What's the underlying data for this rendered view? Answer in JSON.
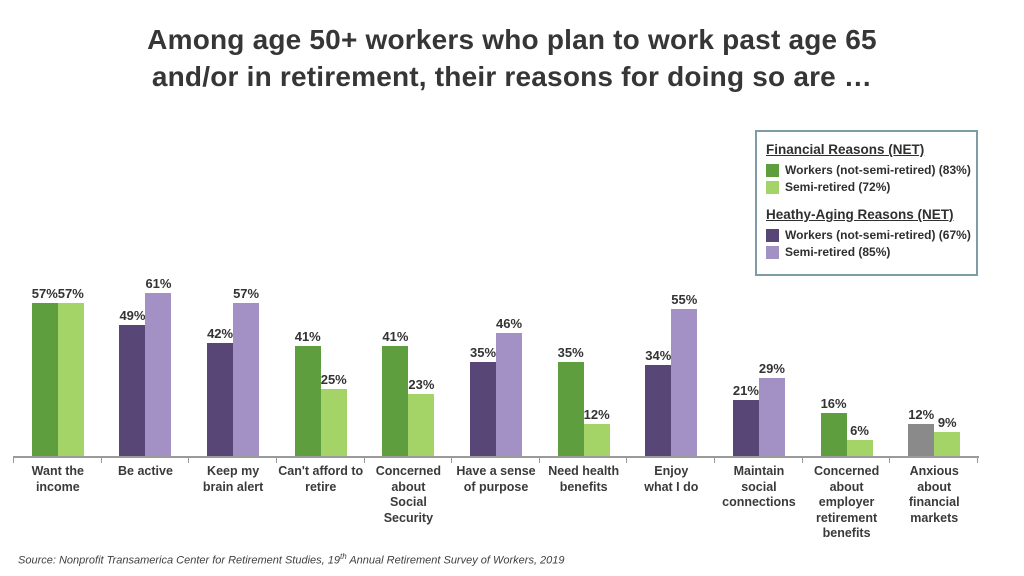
{
  "header": {
    "line1": "Among age 50+ workers who plan to work past age 65",
    "line2": "and/or in retirement, their reasons for doing so are …"
  },
  "legend": {
    "sections": [
      {
        "title": "Financial Reasons (NET)",
        "items": [
          {
            "label": "Workers (not-semi-retired) (83%)",
            "color": "dark_green"
          },
          {
            "label": "Semi-retired (72%)",
            "color": "light_green"
          }
        ]
      },
      {
        "title": "Heathy-Aging Reasons (NET)",
        "items": [
          {
            "label": "Workers (not-semi-retired) (67%)",
            "color": "dark_purple"
          },
          {
            "label": "Semi-retired (85%)",
            "color": "light_purple"
          }
        ]
      }
    ]
  },
  "chart_data": {
    "type": "bar",
    "title": "Among age 50+ workers who plan to work past age 65 and/or in retirement, their reasons for doing so are …",
    "ylim": [
      0,
      70
    ],
    "grid": false,
    "value_label_format": "{v}%",
    "legend_position": "top-right",
    "palette": {
      "dark_green": "#5f9e3f",
      "light_green": "#a4d368",
      "dark_purple": "#584676",
      "light_purple": "#a391c5",
      "gray": "#8a8a8a"
    },
    "series": [
      {
        "name": "Workers (not-semi-retired)",
        "values": [
          57,
          49,
          42,
          41,
          41,
          35,
          35,
          34,
          21,
          16,
          12
        ]
      },
      {
        "name": "Semi-retired",
        "values": [
          57,
          61,
          57,
          25,
          23,
          46,
          12,
          55,
          29,
          6,
          9
        ]
      }
    ],
    "categories": [
      {
        "label": "Want the\nincome",
        "palette_pair": [
          "dark_green",
          "light_green"
        ]
      },
      {
        "label": "Be active",
        "palette_pair": [
          "dark_purple",
          "light_purple"
        ]
      },
      {
        "label": "Keep my\nbrain alert",
        "palette_pair": [
          "dark_purple",
          "light_purple"
        ]
      },
      {
        "label": "Can't afford to\nretire",
        "palette_pair": [
          "dark_green",
          "light_green"
        ]
      },
      {
        "label": "Concerned\nabout\nSocial\nSecurity",
        "palette_pair": [
          "dark_green",
          "light_green"
        ]
      },
      {
        "label": "Have a sense\nof purpose",
        "palette_pair": [
          "dark_purple",
          "light_purple"
        ]
      },
      {
        "label": "Need health\nbenefits",
        "palette_pair": [
          "dark_green",
          "light_green"
        ]
      },
      {
        "label": "Enjoy\nwhat I do",
        "palette_pair": [
          "dark_purple",
          "light_purple"
        ]
      },
      {
        "label": "Maintain\nsocial\nconnections",
        "palette_pair": [
          "dark_purple",
          "light_purple"
        ]
      },
      {
        "label": "Concerned\nabout\nemployer\nretirement\nbenefits",
        "palette_pair": [
          "dark_green",
          "light_green"
        ]
      },
      {
        "label": "Anxious\nabout\nfinancial\nmarkets",
        "palette_pair": [
          "gray",
          "light_green"
        ]
      }
    ]
  },
  "footer": {
    "source_prefix": "Source: Nonprofit Transamerica Center for Retirement Studies, 19",
    "source_sup": "th",
    "source_rest": " Annual Retirement Survey of Workers, 2019"
  }
}
